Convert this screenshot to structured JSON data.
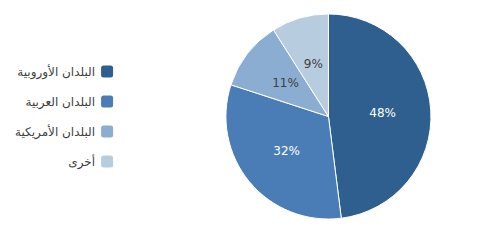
{
  "chart_data": {
    "type": "pie",
    "categories": [
      "البلدان الأوروبية",
      "البلدان العربية",
      "البلدان الأمريكية",
      "أخرى"
    ],
    "values": [
      48,
      32,
      11,
      9
    ],
    "value_labels": [
      "48%",
      "32%",
      "11%",
      "9%"
    ],
    "colors": [
      "#2e5f8e",
      "#4a7db5",
      "#8aadd1",
      "#b8cce0"
    ],
    "data_labels": true,
    "legend": "left"
  }
}
